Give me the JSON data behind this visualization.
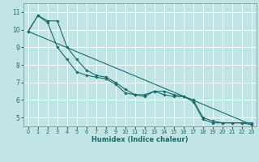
{
  "xlabel": "Humidex (Indice chaleur)",
  "background_color": "#c2e4e4",
  "grid_color": "#ffffff",
  "line_color": "#1a6b6b",
  "xlim": [
    -0.5,
    23.5
  ],
  "ylim": [
    4.5,
    11.5
  ],
  "yticks": [
    5,
    6,
    7,
    8,
    9,
    10,
    11
  ],
  "xticks": [
    0,
    1,
    2,
    3,
    4,
    5,
    6,
    7,
    8,
    9,
    10,
    11,
    12,
    13,
    14,
    15,
    16,
    17,
    18,
    19,
    20,
    21,
    22,
    23
  ],
  "line1_x": [
    0,
    1,
    2,
    3,
    4,
    5,
    6,
    7,
    8,
    9,
    10,
    11,
    12,
    13,
    14,
    15,
    16,
    17,
    18,
    19,
    20,
    21,
    22,
    23
  ],
  "line1_y": [
    9.9,
    10.8,
    10.5,
    10.5,
    9.0,
    8.3,
    7.7,
    7.4,
    7.3,
    7.0,
    6.6,
    6.3,
    6.3,
    6.5,
    6.5,
    6.3,
    6.2,
    6.0,
    5.0,
    4.8,
    4.7,
    4.7,
    4.7,
    4.7
  ],
  "line2_x": [
    0,
    1,
    2,
    3,
    4,
    5,
    6,
    7,
    8,
    9,
    10,
    11,
    12,
    13,
    14,
    15,
    16,
    17,
    18,
    19,
    20,
    21,
    22,
    23
  ],
  "line2_y": [
    9.9,
    10.8,
    10.4,
    9.0,
    8.3,
    7.6,
    7.4,
    7.3,
    7.2,
    6.9,
    6.4,
    6.3,
    6.2,
    6.5,
    6.3,
    6.2,
    6.2,
    5.9,
    4.9,
    4.7,
    4.7,
    4.7,
    4.7,
    4.6
  ],
  "line3_x": [
    0,
    23
  ],
  "line3_y": [
    9.9,
    4.6
  ]
}
